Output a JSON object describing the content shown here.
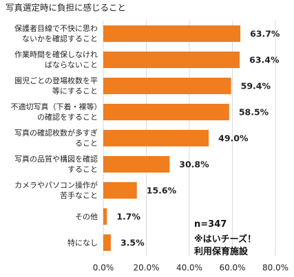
{
  "chart_data": {
    "type": "barh",
    "title": "写真選定時に負担に感じること",
    "categories": [
      "保護者目線で不快に思わないかを確認すること",
      "作業時間を確保しなければならないこと",
      "園児ごとの登場枚数を平等にすること",
      "不適切写真（下着・裸等）の確認をすること",
      "写真の確認枚数が多すぎること",
      "写真の品質や構図を確認すること",
      "カメラやパソコン操作が苦手なこと",
      "その他",
      "特になし"
    ],
    "values": [
      63.7,
      63.4,
      59.4,
      58.5,
      49.0,
      30.8,
      15.6,
      1.7,
      3.5
    ],
    "value_labels": [
      "63.7%",
      "63.4%",
      "59.4%",
      "58.5%",
      "49.0%",
      "30.8%",
      "15.6%",
      "1.7%",
      "3.5%"
    ],
    "color": "#f07d1e",
    "xlim": [
      0,
      80
    ],
    "xticks": [
      {
        "value": 0,
        "label": "0.0%"
      },
      {
        "value": 20,
        "label": "20.0%"
      },
      {
        "value": 40,
        "label": "40.0%"
      },
      {
        "value": 60,
        "label": "60.0%"
      },
      {
        "value": 80,
        "label": "80.0%"
      }
    ],
    "grid": true,
    "annotations": [
      "n=347",
      "※はいチーズ！",
      "利用保育施設"
    ]
  }
}
